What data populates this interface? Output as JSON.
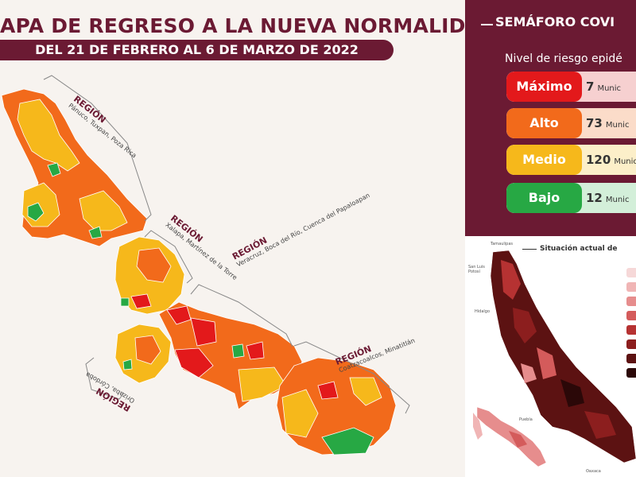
{
  "header": {
    "title": "APA DE REGRESO A LA NUEVA NORMALIDAD",
    "subtitle": "DEL 21 DE FEBRERO AL 6 DE MARZO DE 2022"
  },
  "regions": [
    {
      "title": "REGIÓN",
      "subtitle": "Pánuco, Tuxpan, Poza Rica"
    },
    {
      "title": "REGIÓN",
      "subtitle": "Xalapa, Martínez de la Torre"
    },
    {
      "title": "REGIÓN",
      "subtitle": "Veracruz, Boca del Río, Cuenca del Papaloapan"
    },
    {
      "title": "REGIÓN",
      "subtitle": "Coatzacoalcos, Minatitlán"
    },
    {
      "title": "REGIÓN",
      "subtitle": "Orizaba, Córdoba"
    }
  ],
  "semaforo": {
    "title": "SEMÁFORO COVI",
    "subtitle": "Nivel de riesgo epidé",
    "levels": [
      {
        "name": "Máximo",
        "count": "7",
        "unit": "Munic",
        "color": "#e3191b",
        "bg": "#f6d0d0"
      },
      {
        "name": "Alto",
        "count": "73",
        "unit": "Munic",
        "color": "#f26a1b",
        "bg": "#fbdcc9"
      },
      {
        "name": "Medio",
        "count": "120",
        "unit": "Munic",
        "color": "#f6b81b",
        "bg": "#fcefc9"
      },
      {
        "name": "Bajo",
        "count": "12",
        "unit": "Munic",
        "color": "#27a844",
        "bg": "#d3efd9"
      }
    ]
  },
  "inset": {
    "title": "Situación actual de",
    "places": [
      "Tamaulipas",
      "San Luis Potosí",
      "Hidalgo",
      "Puebla",
      "Oaxaca"
    ],
    "legend_colors": [
      "#f6d8d8",
      "#f0b5b5",
      "#e68d8d",
      "#d45b5b",
      "#b63232",
      "#8c1e1e",
      "#5c1212",
      "#2b0808"
    ]
  },
  "colors": {
    "maroon": "#6b1a33",
    "max": "#e3191b",
    "alto": "#f26a1b",
    "medio": "#f6b81b",
    "bajo": "#27a844"
  }
}
